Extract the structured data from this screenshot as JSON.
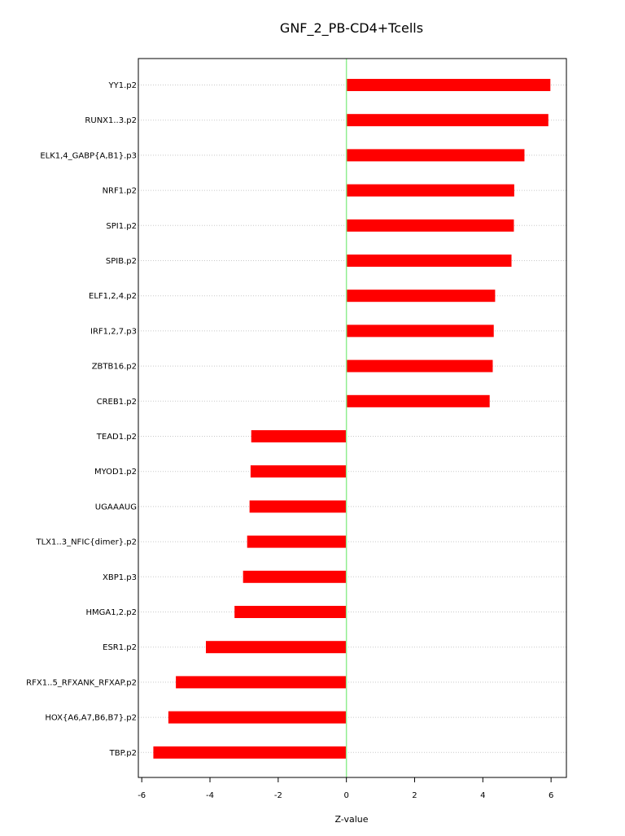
{
  "chart_data": {
    "type": "bar",
    "orientation": "horizontal",
    "title": "GNF_2_PB-CD4+Tcells",
    "xlabel": "Z-value",
    "ylabel": "",
    "xlim": [
      -6.1,
      6.45
    ],
    "xticks": [
      -6,
      -4,
      -2,
      0,
      2,
      4,
      6
    ],
    "grid": true,
    "reference_line": {
      "x": 0,
      "color": "#90ee90"
    },
    "bar_color": "#ff0000",
    "categories": [
      "YY1.p2",
      "RUNX1..3.p2",
      "ELK1,4_GABP{A,B1}.p3",
      "NRF1.p2",
      "SPI1.p2",
      "SPIB.p2",
      "ELF1,2,4.p2",
      "IRF1,2,7.p3",
      "ZBTB16.p2",
      "CREB1.p2",
      "TEAD1.p2",
      "MYOD1.p2",
      "UGAAAUG",
      "TLX1..3_NFIC{dimer}.p2",
      "XBP1.p3",
      "HMGA1,2.p2",
      "ESR1.p2",
      "RFX1..5_RFXANK_RFXAP.p2",
      "HOX{A6,A7,B6,B7}.p2",
      "TBP.p2"
    ],
    "values": [
      5.98,
      5.92,
      5.22,
      4.92,
      4.91,
      4.84,
      4.36,
      4.32,
      4.29,
      4.2,
      -2.79,
      -2.81,
      -2.84,
      -2.91,
      -3.03,
      -3.28,
      -4.12,
      -5.0,
      -5.22,
      -5.66
    ]
  }
}
